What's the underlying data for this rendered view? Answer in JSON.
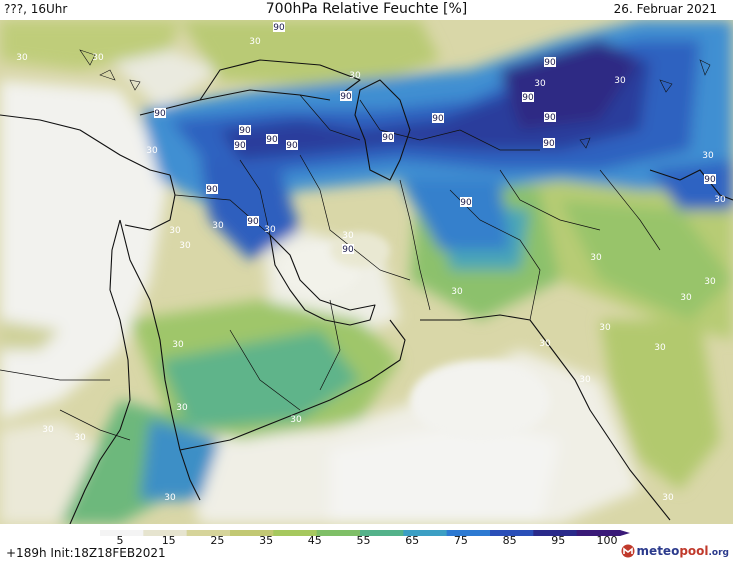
{
  "header": {
    "left": "???, 16Uhr",
    "title": "700hPa Relative Feuchte [%]",
    "date": "26. Februar 2021"
  },
  "footer": {
    "run_info": "+189h  Init:18Z18FEB2021",
    "brand_main": "meteo",
    "brand_accent": "pool",
    "brand_suffix": ".org"
  },
  "legend": {
    "ticks": [
      "5",
      "15",
      "25",
      "35",
      "45",
      "55",
      "65",
      "75",
      "85",
      "95",
      "100"
    ],
    "colors": [
      "#f4f4f4",
      "#e6e4cf",
      "#d6d49a",
      "#c2c873",
      "#a6c85e",
      "#7fbf67",
      "#54b28a",
      "#3c9fc4",
      "#2d7ad2",
      "#2a4fb8",
      "#2a2a8a",
      "#3a1a78"
    ]
  },
  "map_labels": {
    "values": [
      "30",
      "30",
      "30",
      "30",
      "30",
      "30",
      "30",
      "30",
      "30",
      "30",
      "30",
      "30",
      "30",
      "30",
      "30",
      "30",
      "30",
      "30",
      "30",
      "30",
      "30",
      "30",
      "30",
      "30",
      "30",
      "30",
      "30",
      "30",
      "30",
      "90",
      "90",
      "90",
      "90",
      "90",
      "90",
      "90",
      "90",
      "90",
      "90",
      "90",
      "90",
      "90",
      "90",
      "90",
      "90",
      "90",
      "90"
    ]
  }
}
